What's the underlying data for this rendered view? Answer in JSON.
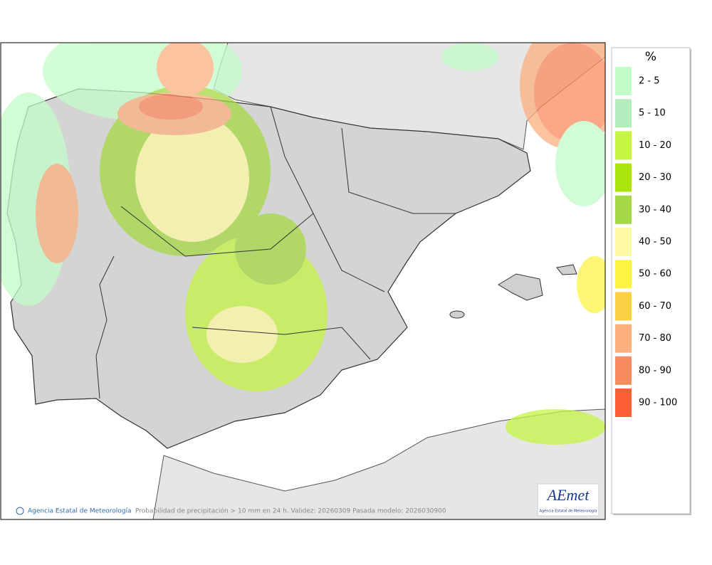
{
  "legend": {
    "title": "%",
    "items": [
      {
        "label": "2 - 5",
        "color": "#c4fcc8"
      },
      {
        "label": "5 - 10",
        "color": "#b4ecbc"
      },
      {
        "label": "10 - 20",
        "color": "#c4f444"
      },
      {
        "label": "20 - 30",
        "color": "#ace410"
      },
      {
        "label": "30 - 40",
        "color": "#a4d844"
      },
      {
        "label": "40 - 50",
        "color": "#fcf8a4"
      },
      {
        "label": "50 - 60",
        "color": "#fcf444"
      },
      {
        "label": "60 - 70",
        "color": "#fcd044"
      },
      {
        "label": "70 - 80",
        "color": "#fcb080"
      },
      {
        "label": "80 - 90",
        "color": "#fc8a60"
      },
      {
        "label": "90 - 100",
        "color": "#fc6034"
      }
    ]
  },
  "footer": {
    "credit": "Agencia Estatal de Meteorología",
    "caption": "Probabilidad de precipitación > 10 mm en 24 h. Validez: 20260309 Pasada modelo: 2026030900"
  },
  "logo": {
    "name": "AEmet",
    "subtitle": "Agencia Estatal de Meteorología"
  }
}
